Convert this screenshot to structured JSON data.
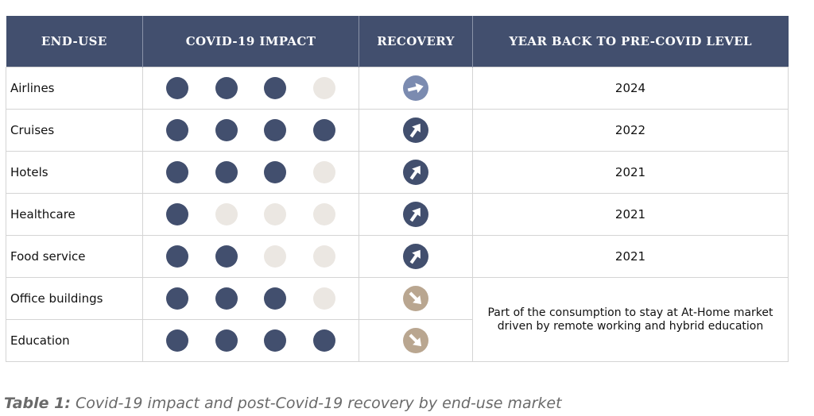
{
  "table": {
    "headers": [
      "END-USE",
      "COVID-19 IMPACT",
      "RECOVERY",
      "YEAR BACK TO PRE-COVID LEVEL"
    ],
    "rows": [
      {
        "end_use": "Airlines",
        "impact": [
          1,
          1,
          1,
          0
        ],
        "recovery": "east",
        "year": "2024"
      },
      {
        "end_use": "Cruises",
        "impact": [
          1,
          1,
          1,
          1
        ],
        "recovery": "north-east",
        "year": "2022"
      },
      {
        "end_use": "Hotels",
        "impact": [
          1,
          1,
          1,
          0
        ],
        "recovery": "north-east",
        "year": "2021"
      },
      {
        "end_use": "Healthcare",
        "impact": [
          1,
          0,
          0,
          0
        ],
        "recovery": "north-east",
        "year": "2021"
      },
      {
        "end_use": "Food service",
        "impact": [
          1,
          1,
          0,
          0
        ],
        "recovery": "north-east",
        "year": "2021"
      },
      {
        "end_use": "Office buildings",
        "impact": [
          1,
          1,
          1,
          0
        ],
        "recovery": "south-east",
        "year": ""
      },
      {
        "end_use": "Education",
        "impact": [
          1,
          1,
          1,
          1
        ],
        "recovery": "south-east",
        "year": ""
      }
    ],
    "merged_note": "Part of the consumption to stay at At-Home market driven by remote working and hybrid education"
  },
  "caption": {
    "label": "Table 1:",
    "text": " Covid-19 impact and post-Covid-19 recovery by end-use market"
  },
  "colors": {
    "header_bg": "#424f6e",
    "dot_filled": "#424f6e",
    "dot_empty": "#ebe7e2",
    "recovery_east": "#7b8bb0",
    "recovery_north_east": "#424f6e",
    "recovery_south_east": "#b9a690"
  }
}
